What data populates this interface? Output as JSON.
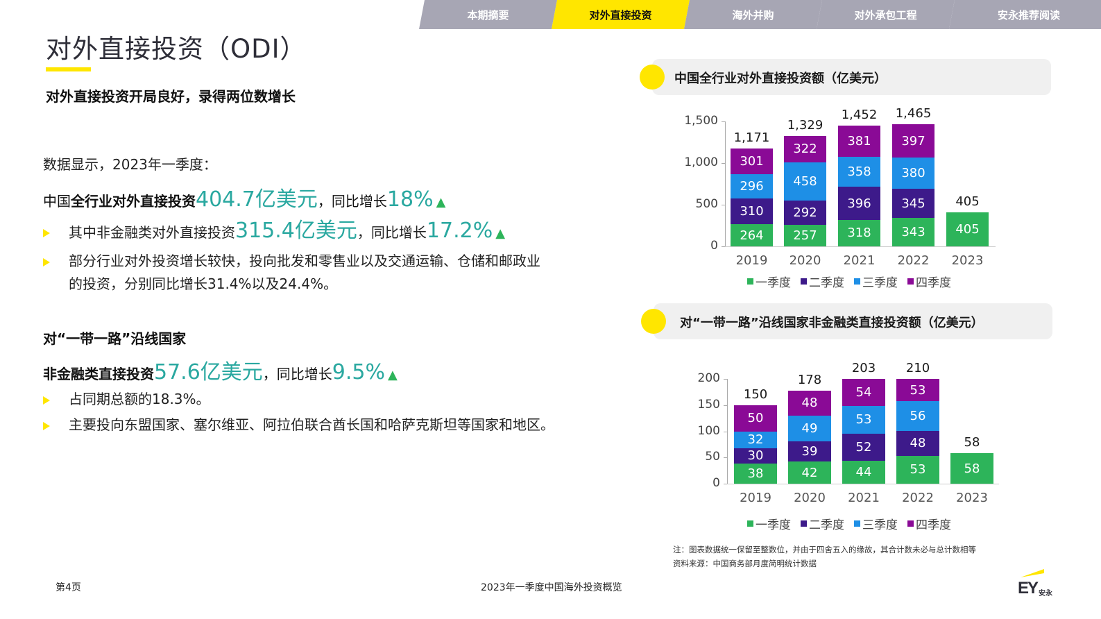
{
  "nav": {
    "tabs": [
      {
        "label": "本期摘要",
        "active": false
      },
      {
        "label": "对外直接投资",
        "active": true
      },
      {
        "label": "海外并购",
        "active": false
      },
      {
        "label": "对外承包工程",
        "active": false
      },
      {
        "label": "安永推荐阅读",
        "active": false
      }
    ]
  },
  "page": {
    "title": "对外直接投资（ODI）",
    "subtitle": "对外直接投资开局良好，录得两位数增长",
    "intro": "数据显示，2023年一季度：",
    "headline1": {
      "prefix": "中国",
      "bold": "全行业对外直接投资",
      "amount": "404.7亿美元",
      "mid": "，同比增长",
      "pct": "18%",
      "arrow": "▲"
    },
    "bullets1": [
      {
        "prefix": "其中非金融类对外直接投资",
        "amount": "315.4亿美元",
        "mid": "，同比增长",
        "pct": "17.2%",
        "arrow": "▲"
      },
      {
        "line1": "部分行业对外投资增长较快，投向批发和零售业以及交通运输、仓储和邮政业",
        "line2": "的投资，分别同比增长31.4%以及24.4%。"
      }
    ],
    "section2_head": "对“一带一路”沿线国家",
    "headline2": {
      "bold": "非金融类直接投资",
      "amount": "57.6亿美元",
      "mid": "，同比增长",
      "pct": "9.5%",
      "arrow": "▲"
    },
    "bullets2": [
      "占同期总额的18.3%。",
      "主要投向东盟国家、塞尔维亚、阿拉伯联合酋长国和哈萨克斯坦等国家和地区。"
    ],
    "note": "注：图表数据统一保留至整数位，并由于四舍五入的缘故，其合计数未必与总计数相等",
    "source": "资料来源：中国商务部月度简明统计数据",
    "footer_page": "第4页",
    "footer_title": "2023年一季度中国海外投资概览",
    "logo_text": "EY",
    "logo_cn": "安永"
  },
  "colors": {
    "accent_yellow": "#ffe600",
    "tab_gray": "#a7a6b4",
    "highlight_teal": "#2aa8a0",
    "up_green": "#2db45a",
    "q1": "#2db45a",
    "q2": "#3d1a8a",
    "q3": "#1e8fe6",
    "q4": "#8a0a96"
  },
  "chart_data": [
    {
      "type": "bar",
      "stacked": true,
      "title": "中国全行业对外直接投资额（亿美元）",
      "categories": [
        "2019",
        "2020",
        "2021",
        "2022",
        "2023"
      ],
      "series": [
        {
          "name": "一季度",
          "values": [
            264,
            257,
            318,
            343,
            405
          ]
        },
        {
          "name": "二季度",
          "values": [
            310,
            292,
            396,
            345,
            null
          ]
        },
        {
          "name": "三季度",
          "values": [
            296,
            458,
            358,
            380,
            null
          ]
        },
        {
          "name": "四季度",
          "values": [
            301,
            322,
            381,
            397,
            null
          ]
        }
      ],
      "totals": [
        "1,171",
        "1,329",
        "1,452",
        "1,465",
        "405"
      ],
      "yticks": [
        "0",
        "500",
        "1,000",
        "1,500"
      ],
      "ylim": [
        0,
        1500
      ],
      "legend_position": "bottom",
      "grid": false
    },
    {
      "type": "bar",
      "stacked": true,
      "title": "对“一带一路”沿线国家非金融类直接投资额（亿美元）",
      "categories": [
        "2019",
        "2020",
        "2021",
        "2022",
        "2023"
      ],
      "series": [
        {
          "name": "一季度",
          "values": [
            38,
            42,
            44,
            53,
            58
          ]
        },
        {
          "name": "二季度",
          "values": [
            30,
            39,
            52,
            48,
            null
          ]
        },
        {
          "name": "三季度",
          "values": [
            32,
            49,
            53,
            56,
            null
          ]
        },
        {
          "name": "四季度",
          "values": [
            50,
            48,
            54,
            53,
            null
          ]
        }
      ],
      "totals": [
        "150",
        "178",
        "203",
        "210",
        "58"
      ],
      "yticks": [
        "0",
        "50",
        "100",
        "150",
        "200"
      ],
      "ylim": [
        0,
        200
      ],
      "legend_position": "bottom",
      "grid": false
    }
  ]
}
